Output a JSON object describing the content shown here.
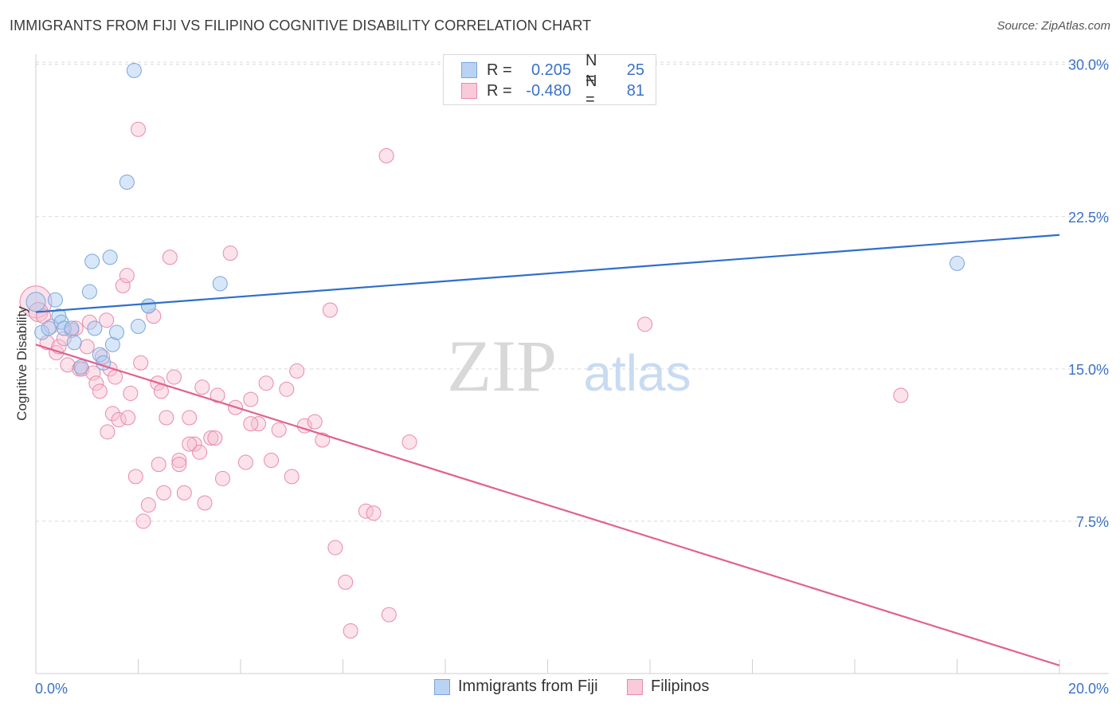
{
  "title": "IMMIGRANTS FROM FIJI VS FILIPINO COGNITIVE DISABILITY CORRELATION CHART",
  "source": "Source: ZipAtlas.com",
  "watermark": {
    "zip": "ZIP",
    "atlas": "atlas"
  },
  "legend": {
    "rows": [
      {
        "r_label": "R =",
        "r_value": "0.205",
        "n_label": "N =",
        "n_value": "25"
      },
      {
        "r_label": "R =",
        "r_value": "-0.480",
        "n_label": "N =",
        "n_value": "81"
      }
    ]
  },
  "colors": {
    "fiji_fill": "#a9c9f0",
    "fiji_stroke": "#7aa6de",
    "fiji_line": "#2f6fca",
    "filipino_fill": "#f7bfd2",
    "filipino_stroke": "#e98aaa",
    "filipino_line": "#e0628f",
    "grid": "#d9d9d9",
    "axis_text": "#3a72c8"
  },
  "chart_data": {
    "type": "scatter",
    "title": "IMMIGRANTS FROM FIJI VS FILIPINO COGNITIVE DISABILITY CORRELATION CHART",
    "xlabel": "",
    "ylabel": "Cognitive Disability",
    "xlim": [
      0,
      20
    ],
    "ylim": [
      0,
      30.5
    ],
    "x_tick_labels": [
      "0.0%",
      "20.0%"
    ],
    "y_ticks": [
      7.5,
      15.0,
      22.5,
      30.0
    ],
    "y_tick_labels": [
      "7.5%",
      "15.0%",
      "22.5%",
      "30.0%"
    ],
    "grid": true,
    "legend_position": "top-center",
    "series": [
      {
        "name": "Immigrants from Fiji",
        "x": [
          0.0,
          0.12,
          0.25,
          0.38,
          0.45,
          0.5,
          0.55,
          0.75,
          0.88,
          1.05,
          1.1,
          1.25,
          1.32,
          1.45,
          1.5,
          1.58,
          1.78,
          1.92,
          2.0,
          2.2,
          2.2,
          1.15,
          0.7,
          3.6,
          18.0
        ],
        "y": [
          18.3,
          16.8,
          17.0,
          18.4,
          17.6,
          17.3,
          17.0,
          16.3,
          15.1,
          18.8,
          20.3,
          15.7,
          15.3,
          20.5,
          16.2,
          16.8,
          24.2,
          29.7,
          17.1,
          18.1,
          18.1,
          17.0,
          17.0,
          19.2,
          20.2
        ],
        "sizes": [
          12,
          9,
          9,
          9,
          9,
          9,
          9,
          9,
          9,
          9,
          9,
          9,
          9,
          9,
          9,
          9,
          9,
          9,
          9,
          9,
          9,
          9,
          9,
          9,
          9
        ]
      },
      {
        "name": "Filipinos",
        "x": [
          0.0,
          0.05,
          0.15,
          0.22,
          0.3,
          0.4,
          0.45,
          0.55,
          0.62,
          0.7,
          0.78,
          0.85,
          0.9,
          1.0,
          1.05,
          1.12,
          1.18,
          1.25,
          1.3,
          1.38,
          1.45,
          1.5,
          1.55,
          1.62,
          1.7,
          1.78,
          1.85,
          1.95,
          2.05,
          2.1,
          2.2,
          2.3,
          2.38,
          2.45,
          2.55,
          2.62,
          2.7,
          2.8,
          2.9,
          3.0,
          3.1,
          3.2,
          3.3,
          3.42,
          3.55,
          3.65,
          3.8,
          3.9,
          4.1,
          4.2,
          4.35,
          4.5,
          4.6,
          4.75,
          4.9,
          5.0,
          5.1,
          5.25,
          5.45,
          5.6,
          5.75,
          5.85,
          6.05,
          6.15,
          6.45,
          6.6,
          6.85,
          6.9,
          2.0,
          2.5,
          2.8,
          3.5,
          4.2,
          1.4,
          1.8,
          2.4,
          3.0,
          3.25,
          7.3,
          11.9,
          16.9
        ],
        "y": [
          18.3,
          17.8,
          17.6,
          16.3,
          17.1,
          15.8,
          16.1,
          16.5,
          15.2,
          16.9,
          17.0,
          15.0,
          15.0,
          16.1,
          17.3,
          14.8,
          14.3,
          13.9,
          15.6,
          17.4,
          15.0,
          12.8,
          14.6,
          12.5,
          19.1,
          19.6,
          13.8,
          9.7,
          15.3,
          7.5,
          8.3,
          17.6,
          14.3,
          13.9,
          12.6,
          20.5,
          14.6,
          10.5,
          8.9,
          12.6,
          11.3,
          10.9,
          8.4,
          11.6,
          13.7,
          9.6,
          20.7,
          13.1,
          10.4,
          13.5,
          12.3,
          14.3,
          10.5,
          12.0,
          14.0,
          9.7,
          14.9,
          12.2,
          12.4,
          11.5,
          17.9,
          6.2,
          4.5,
          2.1,
          8.0,
          7.9,
          25.5,
          2.9,
          26.8,
          8.9,
          10.3,
          11.6,
          12.3,
          11.9,
          12.6,
          10.3,
          11.3,
          14.1,
          11.4,
          17.2,
          13.7
        ],
        "sizes": [
          20,
          12,
          9,
          9,
          9,
          9,
          9,
          9,
          9,
          9,
          9,
          9,
          9,
          9,
          9,
          9,
          9,
          9,
          9,
          9,
          9,
          9,
          9,
          9,
          9,
          9,
          9,
          9,
          9,
          9,
          9,
          9,
          9,
          9,
          9,
          9,
          9,
          9,
          9,
          9,
          9,
          9,
          9,
          9,
          9,
          9,
          9,
          9,
          9,
          9,
          9,
          9,
          9,
          9,
          9,
          9,
          9,
          9,
          9,
          9,
          9,
          9,
          9,
          9,
          9,
          9,
          9,
          9,
          9,
          9,
          9,
          9,
          9,
          9,
          9,
          9,
          9,
          9,
          9,
          9,
          9
        ]
      }
    ],
    "trendlines": [
      {
        "series": "Immigrants from Fiji",
        "x": [
          0,
          20
        ],
        "y": [
          17.8,
          21.6
        ]
      },
      {
        "series": "Filipinos",
        "x": [
          0,
          20
        ],
        "y": [
          16.2,
          0.4
        ]
      }
    ]
  }
}
